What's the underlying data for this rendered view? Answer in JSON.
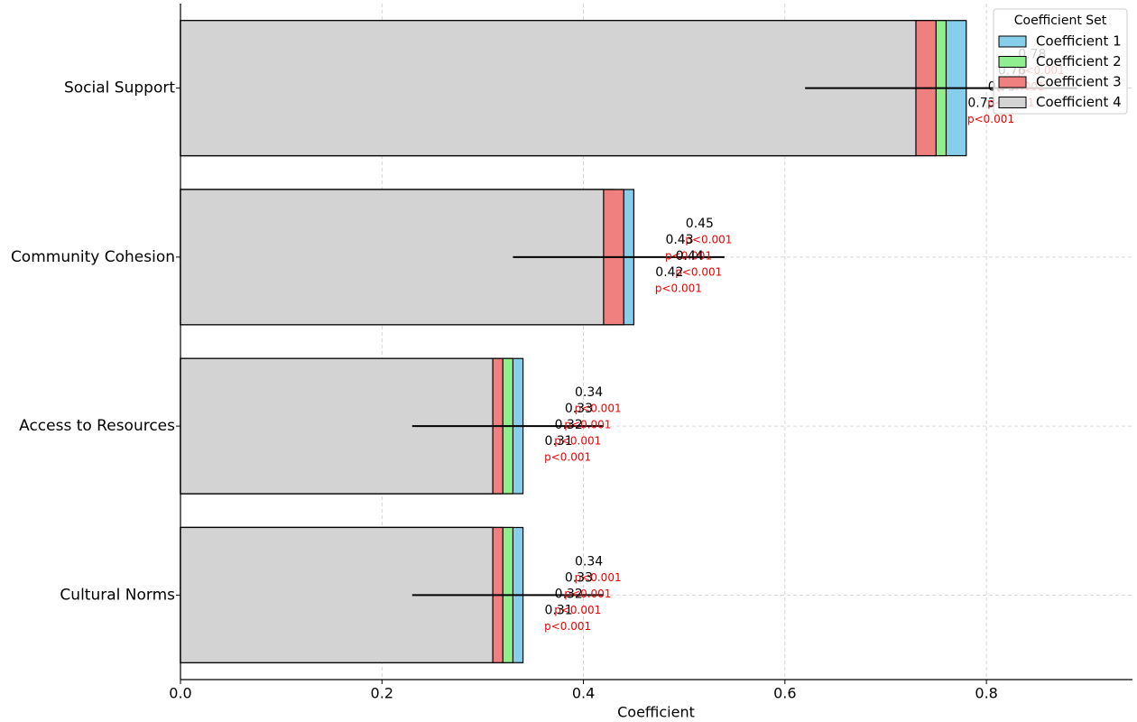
{
  "chart_data": {
    "type": "bar",
    "orientation": "horizontal",
    "overlap": true,
    "xlabel": "Coefficient",
    "categories": [
      "Social Support",
      "Community Cohesion",
      "Access to Resources",
      "Cultural Norms"
    ],
    "series": [
      {
        "name": "Coefficient 1",
        "color": "#87ceeb",
        "values": [
          0.78,
          0.45,
          0.34,
          0.34
        ],
        "p_labels": [
          "p<0.001",
          "p<0.001",
          "p<0.001",
          "p<0.001"
        ]
      },
      {
        "name": "Coefficient 2",
        "color": "#90ee90",
        "values": [
          0.76,
          0.43,
          0.33,
          0.33
        ],
        "p_labels": [
          "p<0.001",
          "p<0.001",
          "p<0.001",
          "p<0.001"
        ]
      },
      {
        "name": "Coefficient 3",
        "color": "#f08080",
        "values": [
          0.75,
          0.44,
          0.32,
          0.32
        ],
        "p_labels": [
          "p<0.001",
          "p<0.001",
          "p<0.001",
          "p<0.001"
        ]
      },
      {
        "name": "Coefficient 4",
        "color": "#d3d3d3",
        "values": [
          0.73,
          0.42,
          0.31,
          0.31
        ],
        "p_labels": [
          "p<0.001",
          "p<0.001",
          "p<0.001",
          "p<0.001"
        ]
      }
    ],
    "error_bars": {
      "centers": [
        0.755,
        0.435,
        0.325,
        0.325
      ],
      "errors": [
        0.135,
        0.105,
        0.095,
        0.095
      ]
    },
    "xlim": [
      0,
      0.945
    ],
    "xticks": [
      {
        "value": 0,
        "label": "0.0"
      },
      0.2,
      0.4,
      0.6,
      0.8
    ],
    "grid": true,
    "legend": {
      "title": "Coefficient Set",
      "position": "upper-right"
    }
  }
}
